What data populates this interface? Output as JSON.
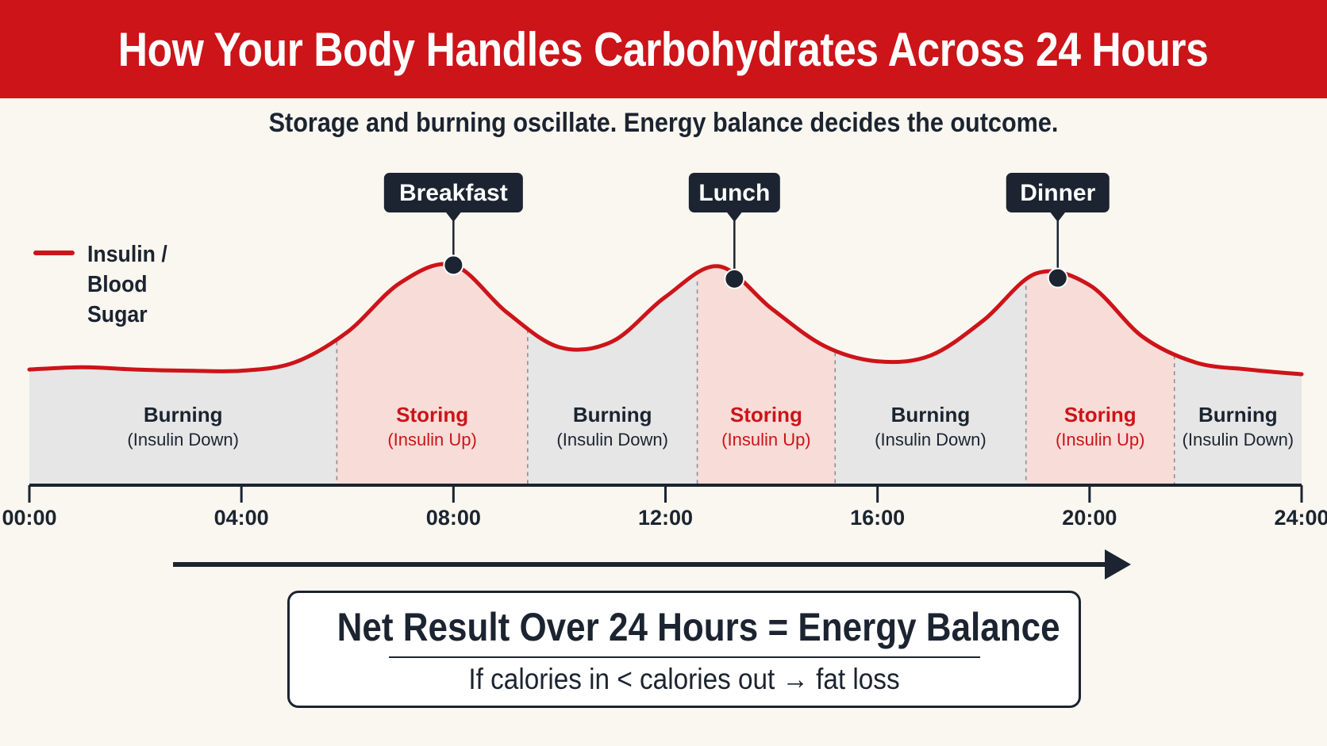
{
  "header": {
    "title": "How Your Body Handles Carbohydrates Across 24 Hours",
    "subtitle": "Storage and burning oscillate. Energy balance decides the outcome."
  },
  "legend": {
    "label": "Insulin / Blood Sugar",
    "color": "#cc1419"
  },
  "summary": {
    "headline": "Net Result Over 24 Hours = Energy Balance",
    "note": "If calories in < calories out → fat loss"
  },
  "colors": {
    "brand_red": "#cc1419",
    "dark": "#1b2430",
    "storing_fill": "#f8dcd8",
    "burning_fill": "#e6e6e6",
    "background": "#faf6f0"
  },
  "chart_data": {
    "type": "area",
    "x_unit": "hours",
    "xlim": [
      0,
      24
    ],
    "x_ticks": [
      "00:00",
      "04:00",
      "08:00",
      "12:00",
      "16:00",
      "20:00",
      "24:00"
    ],
    "series": [
      {
        "name": "Insulin / Blood Sugar",
        "x": [
          0,
          1,
          2,
          3,
          4,
          5,
          6,
          7,
          8,
          9,
          10,
          11,
          12,
          13,
          14,
          15,
          16,
          17,
          18,
          19,
          20,
          21,
          22,
          23,
          24
        ],
        "y": [
          0.06,
          0.08,
          0.06,
          0.05,
          0.05,
          0.12,
          0.38,
          0.8,
          0.95,
          0.55,
          0.25,
          0.3,
          0.68,
          0.94,
          0.58,
          0.26,
          0.13,
          0.18,
          0.48,
          0.88,
          0.78,
          0.34,
          0.12,
          0.06,
          0.02
        ]
      }
    ],
    "meals": [
      {
        "label": "Breakfast",
        "x": 8
      },
      {
        "label": "Lunch",
        "x": 13.3
      },
      {
        "label": "Dinner",
        "x": 19.4
      }
    ],
    "phases": [
      {
        "state": "burning",
        "label": "Burning",
        "sublabel": "(Insulin Down)",
        "start": 0,
        "end": 5.8
      },
      {
        "state": "storing",
        "label": "Storing",
        "sublabel": "(Insulin Up)",
        "start": 5.8,
        "end": 9.4
      },
      {
        "state": "burning",
        "label": "Burning",
        "sublabel": "(Insulin Down)",
        "start": 9.4,
        "end": 12.6
      },
      {
        "state": "storing",
        "label": "Storing",
        "sublabel": "(Insulin Up)",
        "start": 12.6,
        "end": 15.2
      },
      {
        "state": "burning",
        "label": "Burning",
        "sublabel": "(Insulin Down)",
        "start": 15.2,
        "end": 18.8
      },
      {
        "state": "storing",
        "label": "Storing",
        "sublabel": "(Insulin Up)",
        "start": 18.8,
        "end": 21.6
      },
      {
        "state": "burning",
        "label": "Burning",
        "sublabel": "(Insulin Down)",
        "start": 21.6,
        "end": 24
      }
    ],
    "grid": false
  }
}
